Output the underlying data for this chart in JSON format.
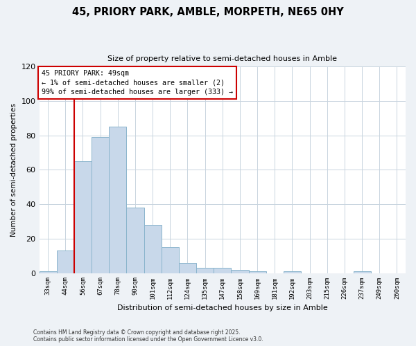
{
  "title": "45, PRIORY PARK, AMBLE, MORPETH, NE65 0HY",
  "subtitle": "Size of property relative to semi-detached houses in Amble",
  "xlabel": "Distribution of semi-detached houses by size in Amble",
  "ylabel": "Number of semi-detached properties",
  "bin_labels": [
    "33sqm",
    "44sqm",
    "56sqm",
    "67sqm",
    "78sqm",
    "90sqm",
    "101sqm",
    "112sqm",
    "124sqm",
    "135sqm",
    "147sqm",
    "158sqm",
    "169sqm",
    "181sqm",
    "192sqm",
    "203sqm",
    "215sqm",
    "226sqm",
    "237sqm",
    "249sqm",
    "260sqm"
  ],
  "bar_values": [
    1,
    13,
    65,
    79,
    85,
    38,
    28,
    15,
    6,
    3,
    3,
    2,
    1,
    0,
    1,
    0,
    0,
    0,
    1,
    0,
    0
  ],
  "bar_color": "#c8d8ea",
  "bar_edge_color": "#8ab4cc",
  "vline_x_idx": 1,
  "vline_color": "#cc0000",
  "annotation_title": "45 PRIORY PARK: 49sqm",
  "annotation_line1": "← 1% of semi-detached houses are smaller (2)",
  "annotation_line2": "99% of semi-detached houses are larger (333) →",
  "annotation_box_color": "#cc0000",
  "ylim": [
    0,
    120
  ],
  "yticks": [
    0,
    20,
    40,
    60,
    80,
    100,
    120
  ],
  "footer_line1": "Contains HM Land Registry data © Crown copyright and database right 2025.",
  "footer_line2": "Contains public sector information licensed under the Open Government Licence v3.0.",
  "bg_color": "#eef2f6",
  "plot_bg_color": "#ffffff",
  "grid_color": "#c8d4de"
}
